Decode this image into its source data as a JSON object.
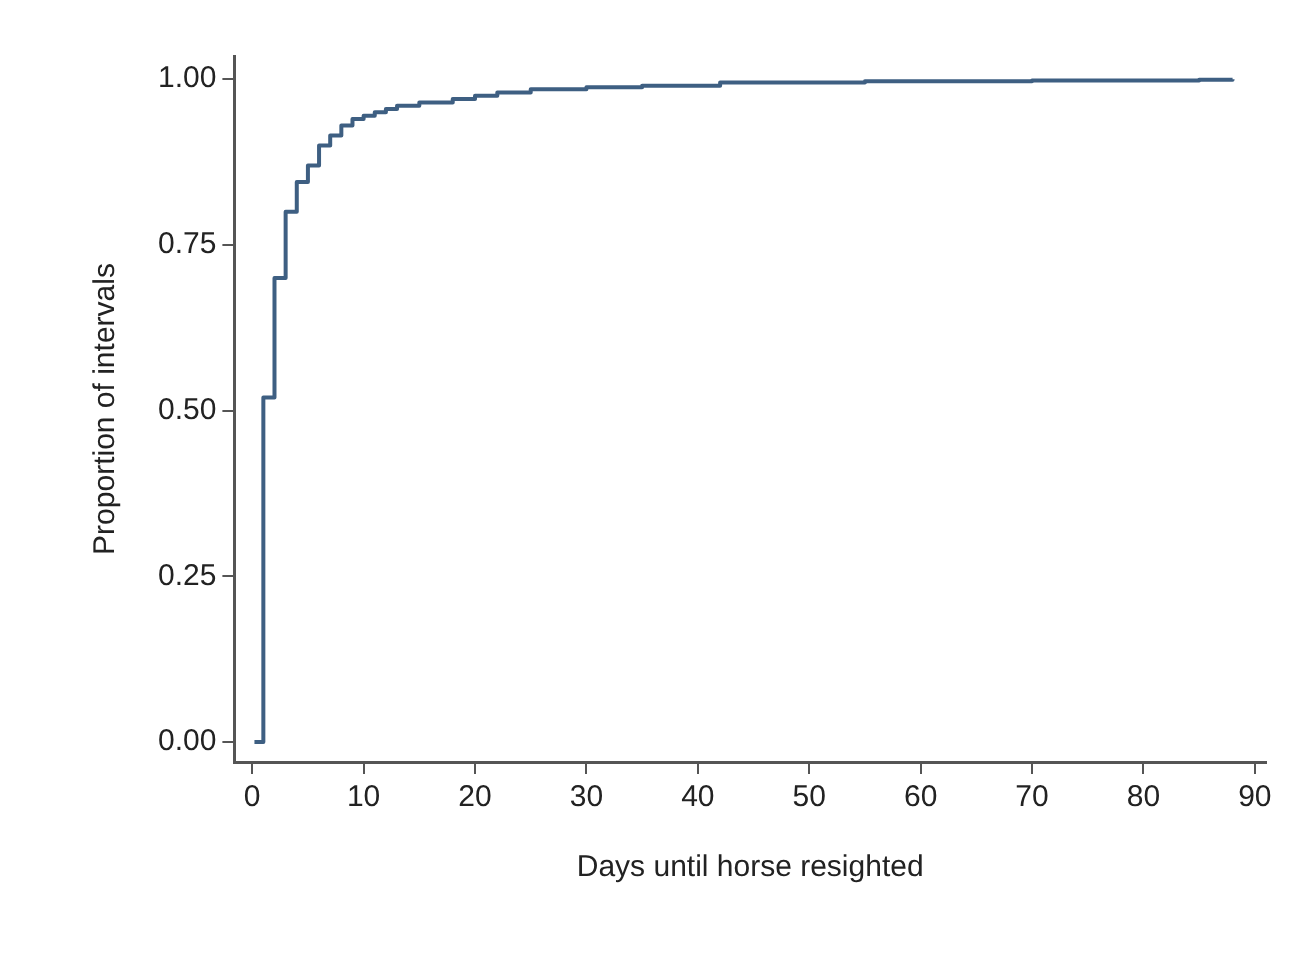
{
  "chart_data": {
    "type": "step",
    "xlabel": "Days until horse resighted",
    "ylabel": "Proportion of intervals",
    "xlim": [
      -1.6,
      91
    ],
    "ylim": [
      -0.03,
      1.035
    ],
    "xticks": [
      0,
      10,
      20,
      30,
      40,
      50,
      60,
      70,
      80,
      90
    ],
    "yticks": [
      {
        "value": 0,
        "label": "0.00"
      },
      {
        "value": 0.25,
        "label": "0.25"
      },
      {
        "value": 0.5,
        "label": "0.50"
      },
      {
        "value": 0.75,
        "label": "0.75"
      },
      {
        "value": 1,
        "label": "1.00"
      }
    ],
    "grid": false,
    "legend": false,
    "marker": "none",
    "line_style": "solid",
    "series": [
      {
        "color": "#3e5f82",
        "x": [
          0.2,
          1,
          2,
          3,
          4,
          5,
          6,
          7,
          8,
          9,
          10,
          11,
          12,
          13,
          15,
          18,
          20,
          22,
          25,
          30,
          35,
          42,
          55,
          70,
          85,
          88
        ],
        "values": [
          0,
          0.52,
          0.7,
          0.8,
          0.845,
          0.87,
          0.9,
          0.915,
          0.93,
          0.94,
          0.945,
          0.95,
          0.955,
          0.96,
          0.965,
          0.97,
          0.975,
          0.98,
          0.985,
          0.988,
          0.99,
          0.995,
          0.997,
          0.998,
          0.999,
          1
        ]
      }
    ]
  }
}
